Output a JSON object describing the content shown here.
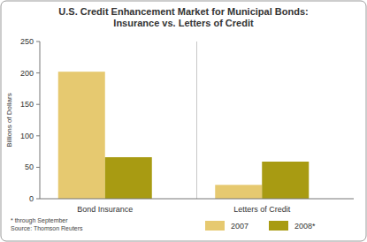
{
  "chart_data": {
    "type": "bar",
    "title": "U.S. Credit Enhancement Market for Municipal Bonds:",
    "subtitle": "Insurance vs. Letters of Credit",
    "y_label": "Billions of Dollars",
    "categories": [
      "Bond Insurance",
      "Letters of Credit"
    ],
    "series": [
      {
        "name": "2007",
        "color": "#e6c970",
        "values": [
          202,
          22
        ]
      },
      {
        "name": "2008*",
        "color": "#a89b12",
        "values": [
          66,
          59
        ]
      }
    ],
    "ylim": [
      0,
      250
    ],
    "yticks": [
      0,
      50,
      100,
      150,
      200,
      250
    ],
    "grid": false,
    "legend": "bottom",
    "annotations": [
      "* through September",
      "Source: Thomson Reuters"
    ]
  }
}
